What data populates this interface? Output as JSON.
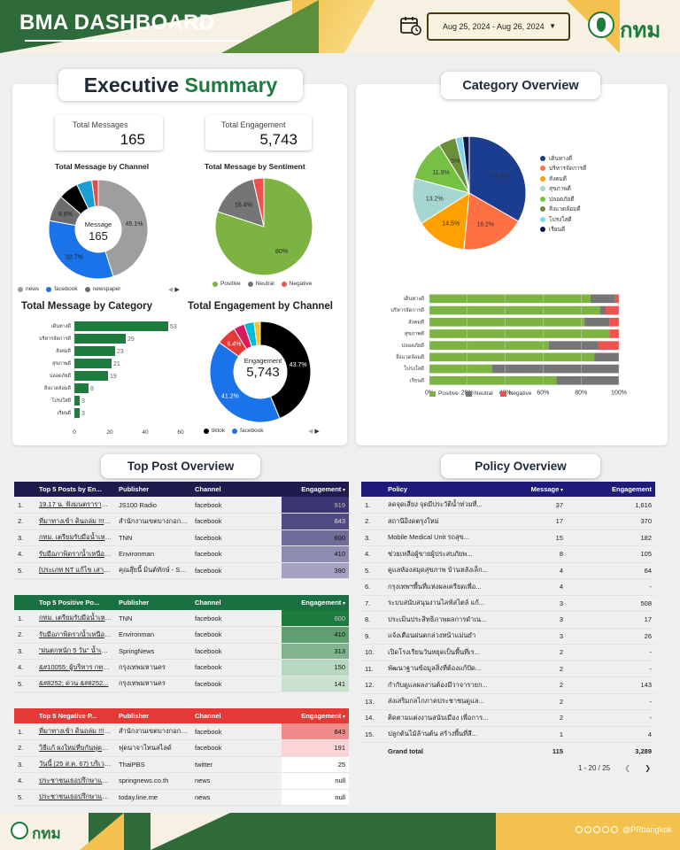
{
  "header": {
    "title": "BMA DASHBOARD",
    "date_range": "Aug 25, 2024 - Aug 26, 2024",
    "logo_text": "กทม"
  },
  "executive": {
    "title_part1": "Executive",
    "title_part2": "Summary",
    "kpi_messages_label": "Total Messages",
    "kpi_messages_value": "165",
    "kpi_engagement_label": "Total Engagement",
    "kpi_engagement_value": "5,743",
    "channel_title": "Total Message by Channel",
    "channel_center_label": "Message",
    "channel_center_value": "165",
    "channel_legend": [
      "news",
      "facebook",
      "newspaper"
    ],
    "sentiment_title": "Total Message by Sentiment",
    "sentiment_legend": [
      "Positive",
      "Neutral",
      "Negative"
    ],
    "category_title": "Total Message by Category",
    "engagement_title": "Total Engagement by Channel",
    "engagement_center_label": "Engagement",
    "engagement_center_value": "5,743",
    "engagement_legend": [
      "tiktok",
      "facebook"
    ]
  },
  "chart_data": [
    {
      "type": "pie",
      "title": "Total Message by Channel",
      "donut": true,
      "labels": [
        "news",
        "facebook",
        "newspaper",
        "other1",
        "other2",
        "other3"
      ],
      "values": [
        45.1,
        32.7,
        8.6,
        6.5,
        5.0,
        2.1
      ],
      "label_texts": [
        "45.1%",
        "32.7%",
        "8.6%"
      ],
      "colors": [
        "#9e9e9e",
        "#1a73e8",
        "#6d6d6d",
        "#000000",
        "#1a9fd4",
        "#e84b4b"
      ]
    },
    {
      "type": "pie",
      "title": "Total Message by Sentiment",
      "labels": [
        "Positive",
        "Neutral",
        "Negative"
      ],
      "values": [
        80,
        16.4,
        3.6
      ],
      "label_texts": [
        "80%",
        "16.4%",
        ""
      ],
      "colors": [
        "#7cb342",
        "#757575",
        "#ef5350"
      ]
    },
    {
      "type": "bar",
      "orientation": "horizontal",
      "title": "Total Message by Category",
      "categories": [
        "เดินทางดี",
        "บริหารจัดการดี",
        "สังคมดี",
        "สุขภาพดี",
        "ปลอดภัยดี",
        "สิ่งแวดล้อมดี",
        "โปร่งใสดี",
        "เรียนดี"
      ],
      "values": [
        53,
        29,
        23,
        21,
        19,
        8,
        3,
        3
      ],
      "xlim": [
        0,
        60
      ],
      "xticks": [
        "0",
        "20",
        "40",
        "60"
      ],
      "color": "#1e7b3e"
    },
    {
      "type": "pie",
      "title": "Total Engagement by Channel",
      "donut": true,
      "labels": [
        "tiktok",
        "facebook",
        "newspaper",
        "pink",
        "cyan",
        "yellow"
      ],
      "values": [
        43.7,
        41.2,
        6.4,
        3.5,
        3.2,
        2.0
      ],
      "label_texts": [
        "43.7%",
        "41.2%",
        "6.4%"
      ],
      "colors": [
        "#000000",
        "#1a73e8",
        "#e53935",
        "#d81b60",
        "#00bcd4",
        "#fbc02d"
      ]
    },
    {
      "type": "pie",
      "title": "Category Overview",
      "labels": [
        "เดินทางดี",
        "บริหารจัดการดี",
        "สังคมดี",
        "สุขภาพดี",
        "ปลอดภัยดี",
        "สิ่งแวดล้อมดี",
        "โปร่งใสดี",
        "เรียนดี"
      ],
      "values": [
        33.3,
        18.2,
        14.5,
        13.2,
        11.9,
        5.0,
        2.0,
        1.9
      ],
      "label_texts": [
        "33.3%",
        "18.2%",
        "14.5%",
        "13.2%",
        "11.9%",
        "5%",
        "",
        ""
      ],
      "colors": [
        "#1a3d8f",
        "#ff7043",
        "#ffa000",
        "#a5d6d0",
        "#76c043",
        "#6b8e3a",
        "#7fd3f5",
        "#0d1b4c"
      ]
    },
    {
      "type": "bar",
      "orientation": "horizontal",
      "stacked": true,
      "percent": true,
      "title": "Category Overview Sentiment",
      "categories": [
        "เดินทางดี",
        "บริหารจัดการดี",
        "สังคมดี",
        "สุขภาพดี",
        "ปลอดภัยดี",
        "สิ่งแวดล้อมดี",
        "โปร่งใสดี",
        "เรียนดี"
      ],
      "series": [
        {
          "name": "Positive",
          "values": [
            85,
            90,
            82,
            95,
            63,
            87,
            33,
            67
          ],
          "color": "#7cb342"
        },
        {
          "name": "Neutral",
          "values": [
            13,
            3,
            13,
            0,
            26,
            13,
            67,
            33
          ],
          "color": "#757575"
        },
        {
          "name": "Negative",
          "values": [
            2,
            7,
            5,
            5,
            11,
            0,
            0,
            0
          ],
          "color": "#ef5350"
        }
      ],
      "xticks": [
        "0%",
        "20%",
        "40%",
        "60%",
        "80%",
        "100%"
      ]
    }
  ],
  "category_overview": {
    "title": "Category Overview",
    "legend": [
      "เดินทางดี",
      "บริหารจัดการดี",
      "สังคมดี",
      "สุขภาพดี",
      "ปลอดภัยดี",
      "สิ่งแวดล้อมดี",
      "โปร่งใสดี",
      "เรียนดี"
    ],
    "bar_legend": [
      "Positive",
      "Neutral",
      "Negative"
    ]
  },
  "top_post": {
    "title": "Top Post Overview",
    "top5": {
      "headers": [
        "Top 5 Posts by En...",
        "Publisher",
        "Channel",
        "Engagement"
      ],
      "rows": [
        [
          "1.",
          "19.17 น. ฟังมนตรารายวัน 5...",
          "JS100 Radio",
          "facebook",
          "919"
        ],
        [
          "2.",
          "ที่มาทางเข้า ดินถล่ม !!! ไม่สะ...",
          "สำนักงานเขตบางกอกน้อย...",
          "facebook",
          "843"
        ],
        [
          "3.",
          "กทม. เตรียมรับมือน้ำเหนือ...",
          "TNN",
          "facebook",
          "600"
        ],
        [
          "4.",
          "รับมือภาพิดรา/น้ำเหนือ กทม...",
          "Environman",
          "facebook",
          "410"
        ],
        [
          "5.",
          "[ประเภท NT แก้ไข เสาไฟฟ...",
          "คุณสุ๊ยนี้ มินต์ทักษ์ - Sup...",
          "facebook",
          "390"
        ]
      ]
    },
    "positive": {
      "headers": [
        "Top 5 Positive Po...",
        "Publisher",
        "Channel",
        "Engagement"
      ],
      "rows": [
        [
          "1.",
          "กทม. เตรียมรับมือน้ำเหนือ...",
          "TNN",
          "facebook",
          "600"
        ],
        [
          "2.",
          "รับมือภาพิดรา/น้ำเหนือ กทม...",
          "Environman",
          "facebook",
          "410"
        ],
        [
          "3.",
          "\"ฝนตกหนัก 5 วัน\" น้ำเหนือ...",
          "SpringNews",
          "facebook",
          "313"
        ],
        [
          "4.",
          "&#10055; ผู้บริหาร กทม...",
          "กรุงเทพมหานคร",
          "facebook",
          "150"
        ],
        [
          "5.",
          "&#8252; ด่วน &#8252...",
          "กรุงเทพมหานคร",
          "facebook",
          "141"
        ]
      ]
    },
    "negative": {
      "headers": [
        "Top 5 Negative P...",
        "Publisher",
        "Channel",
        "Engagement"
      ],
      "rows": [
        [
          "1.",
          "ที่มาทางเข้า ดินถล่ม !!! ไม่สะ...",
          "สำนักงานเขตบางกอกน้อย...",
          "facebook",
          "843"
        ],
        [
          "2.",
          "วิธีแก้ ผงใหม่ที่บกันพุ่ดรา...",
          "ฟุดนาจาไหนสไลด์",
          "facebook",
          "191"
        ],
        [
          "3.",
          "วันนี้ (25 ส.ค. 67) บริเวณ...",
          "ThaiPBS",
          "twitter",
          "25"
        ],
        [
          "4.",
          "ประชาชนเธอปรึกษาแหย...",
          "springnews.co.th",
          "news",
          "null"
        ],
        [
          "5.",
          "ประชาชนเธอปรึกษาแหย...",
          "today.line.me",
          "news",
          "null"
        ]
      ]
    }
  },
  "policy": {
    "title": "Policy Overview",
    "headers": [
      "Policy",
      "Message",
      "Engagement"
    ],
    "rows": [
      [
        "1.",
        "ลดจุดเสี่ยง จุดมีประวัติน้ำท่วมที่...",
        "37",
        "1,616"
      ],
      [
        "2.",
        "สถานีอิงดตรุงใหม่",
        "17",
        "370"
      ],
      [
        "3.",
        "Mobile Medical Unit รถสุข...",
        "15",
        "182"
      ],
      [
        "4.",
        "ช่วยเหลือผู้ขายผู้ประสบภัยพ...",
        "8",
        "105"
      ],
      [
        "5.",
        "ดูแลห้องสมุดสุขภาพ บ้านหลังเล็ก...",
        "4",
        "64"
      ],
      [
        "6.",
        "กรุงเทพฯพื้นที่แห่งผลเครียดเพื่อ...",
        "4",
        "-"
      ],
      [
        "7.",
        "ระบบสนับสนุนงานไลฟ์สไตล์ แก้...",
        "3",
        "508"
      ],
      [
        "8.",
        "ประเมินประสิทธิภาพผลการดำเน...",
        "3",
        "17"
      ],
      [
        "9.",
        "แจ้งเตือนฝนตกล่วงหน้าแม่นยำ",
        "3",
        "26"
      ],
      [
        "10.",
        "เปิดโรงเรียนวันหยุดเป็นพื้นที่เร...",
        "2",
        "-"
      ],
      [
        "11.",
        "พัฒนาฐานข้อมูลสิ่งที่ต้องแก้ปัด...",
        "2",
        "-"
      ],
      [
        "12.",
        "กำกับดูแลผลงานต้องมีวาจารายก...",
        "2",
        "143"
      ],
      [
        "13.",
        "ส่งเสริมกลไกภาคประชาชนดูแล...",
        "2",
        "-"
      ],
      [
        "14.",
        "ติดตามแต่งงานสนับเมือง เพื่อการ...",
        "2",
        "-"
      ],
      [
        "15.",
        "ปลูกต้นไม้ล้านต้น สร้างพื้นที่สี...",
        "1",
        "4"
      ]
    ],
    "total_label": "Grand total",
    "total_message": "115",
    "total_engagement": "3,289",
    "pager": "1 - 20 / 25"
  },
  "footer": {
    "logo_text": "กทม",
    "handle": "@PRbangkok"
  }
}
